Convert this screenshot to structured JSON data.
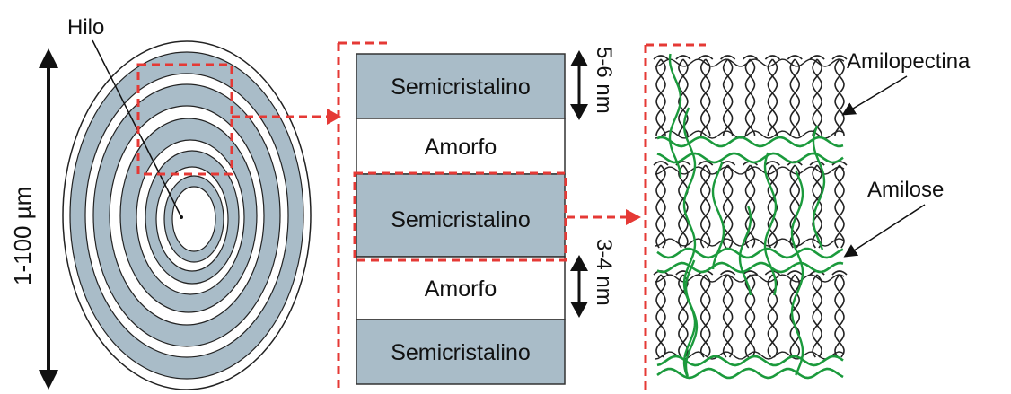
{
  "labels": {
    "hilo": "Hilo",
    "size": "1-100 µm",
    "semi": "Semicristalino",
    "amorfo": "Amorfo",
    "dim_top": "5-6 nm",
    "dim_bottom": "3-4 nm",
    "amilopectina": "Amilopectina",
    "amilose": "Amilose"
  },
  "colors": {
    "ring": "#a9bcc8",
    "band": "#a9bcc8",
    "highlight": "#e53935",
    "amylose": "#1b9a3c",
    "helix": "#222222"
  }
}
